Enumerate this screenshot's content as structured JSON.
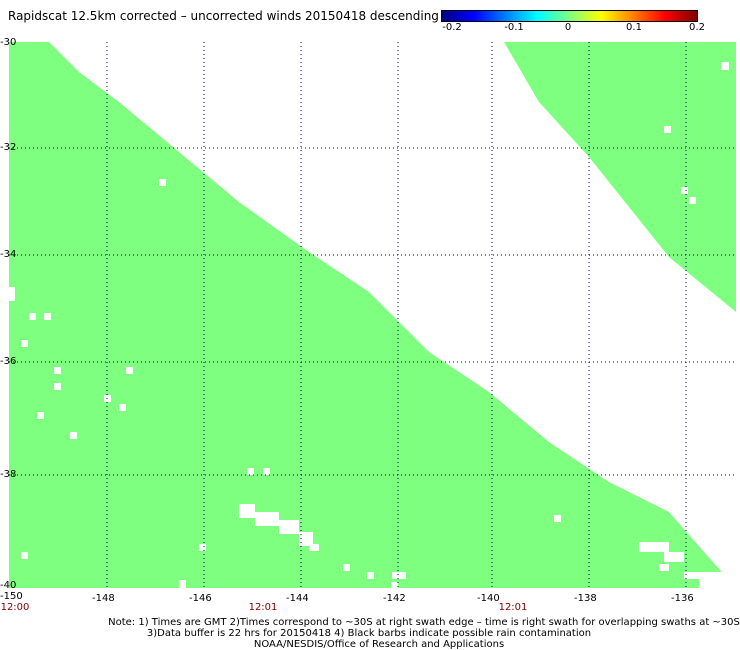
{
  "title": "Rapidscat 12.5km corrected – uncorrected winds 20150418 descending",
  "colorbar": {
    "ticks": [
      "-0.2",
      "-0.1",
      "0",
      "0.1",
      "0.2"
    ],
    "colors": [
      "#00007f",
      "#0000ff",
      "#00ffff",
      "#7fff7f",
      "#ffff00",
      "#ff7f00",
      "#ff0000",
      "#7f0000"
    ]
  },
  "map": {
    "lon_range": [
      -150,
      -135
    ],
    "lat_range": [
      -40,
      -30
    ],
    "lon_ticks": [
      "-150",
      "-148",
      "-146",
      "-144",
      "-142",
      "-140",
      "-138",
      "-136"
    ],
    "lat_ticks": [
      "-30",
      "-32",
      "-34",
      "-36",
      "-38",
      "-40"
    ],
    "swath_color": "#7fff7f",
    "grid_color": "#00007f"
  },
  "times": [
    {
      "label": "12:00",
      "lon": -150
    },
    {
      "label": "12:01",
      "lon": -144.8
    },
    {
      "label": "12:01",
      "lon": -139.5
    }
  ],
  "notes": {
    "line1": "Note: 1) Times are GMT 2)Times correspond to ~30S at right swath edge – time is right swath for overlapping swaths at ~30S",
    "line2": "3)Data buffer is 22 hrs for 20150418 4) Black barbs indicate possible rain contamination",
    "line3": "NOAA/NESDIS/Office of Research and Applications"
  }
}
